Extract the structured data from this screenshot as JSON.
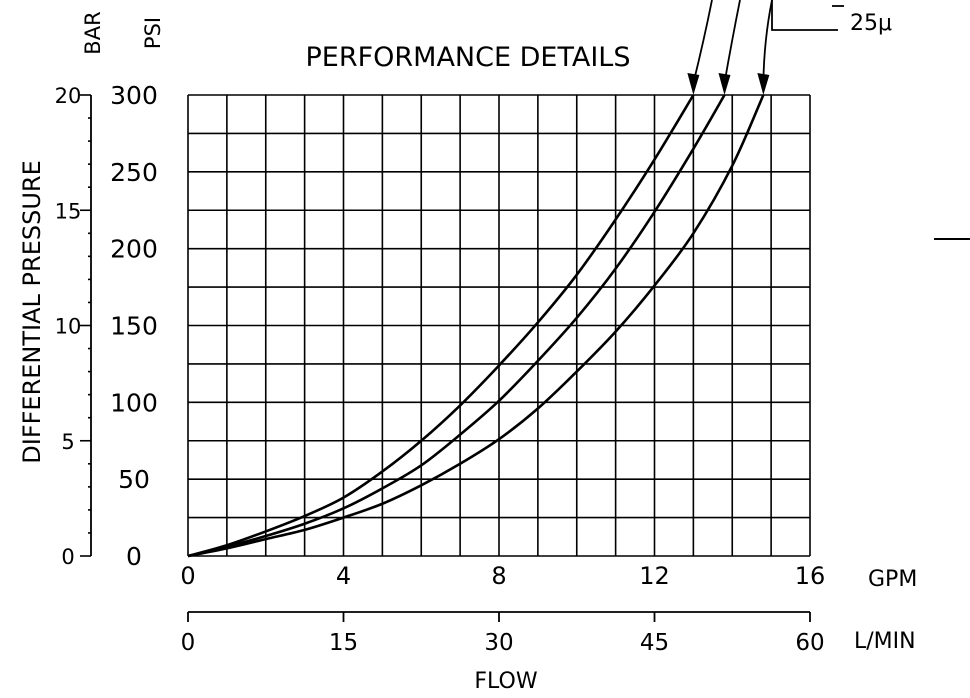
{
  "chart_data": {
    "type": "line",
    "title": "PERFORMANCE DETAILS",
    "ylabel": "DIFFERENTIAL PRESSURE",
    "xlabel": "FLOW",
    "x_units": "GPM",
    "x2_units": "L/MIN",
    "y_units": "PSI",
    "y2_units": "BAR",
    "xlim": [
      0,
      16
    ],
    "ylim": [
      0,
      300
    ],
    "x2lim": [
      0,
      60
    ],
    "y2lim": [
      0,
      20
    ],
    "grid": true,
    "x_ticks": [
      "0",
      "4",
      "8",
      "12",
      "16"
    ],
    "x2_ticks": [
      "0",
      "15",
      "30",
      "45",
      "60"
    ],
    "y_ticks": [
      "0",
      "50",
      "100",
      "150",
      "200",
      "250",
      "300"
    ],
    "y2_ticks": [
      "0",
      "5",
      "10",
      "15",
      "20"
    ],
    "series": [
      {
        "x": [
          0,
          1,
          2,
          3,
          4,
          5,
          6,
          7,
          8,
          9,
          10,
          11,
          12,
          13
        ],
        "values": [
          0,
          7,
          16,
          26,
          38,
          55,
          75,
          98,
          124,
          152,
          183,
          219,
          258,
          300
        ]
      },
      {
        "x": [
          0,
          1,
          2,
          3,
          4,
          5,
          6,
          7,
          8,
          9,
          10,
          11,
          12,
          13,
          13.8
        ],
        "values": [
          0,
          6,
          13,
          21,
          31,
          44,
          59,
          79,
          101,
          127,
          155,
          187,
          224,
          265,
          300
        ]
      },
      {
        "name": "25μ",
        "x": [
          0,
          1,
          2,
          3,
          4,
          5,
          6,
          7,
          8,
          9,
          10,
          11,
          12,
          13,
          14,
          14.8
        ],
        "values": [
          0,
          5,
          11,
          17,
          25,
          34,
          46,
          60,
          76,
          96,
          120,
          146,
          176,
          210,
          254,
          300
        ]
      }
    ]
  }
}
